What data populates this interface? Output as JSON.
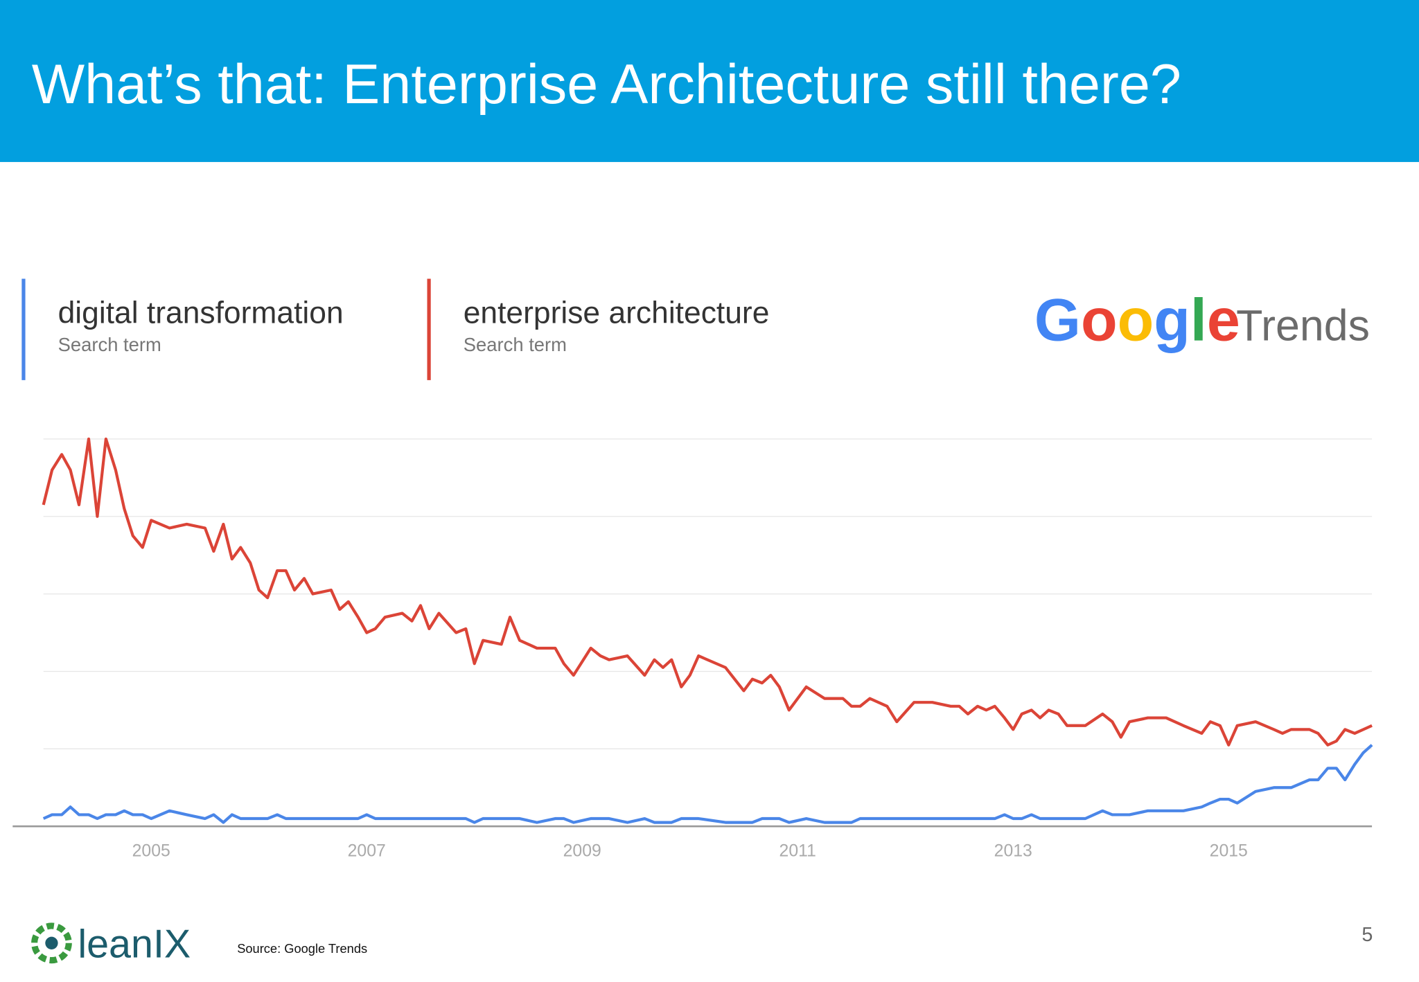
{
  "header": {
    "title": "What’s that: Enterprise Architecture still there?"
  },
  "chart_data": {
    "type": "line",
    "x": [
      2004.0,
      2004.08,
      2004.17,
      2004.25,
      2004.33,
      2004.42,
      2004.5,
      2004.58,
      2004.67,
      2004.75,
      2004.83,
      2004.92,
      2005.0,
      2005.17,
      2005.33,
      2005.5,
      2005.58,
      2005.67,
      2005.75,
      2005.83,
      2005.92,
      2006.0,
      2006.08,
      2006.17,
      2006.25,
      2006.33,
      2006.42,
      2006.5,
      2006.67,
      2006.75,
      2006.83,
      2006.92,
      2007.0,
      2007.08,
      2007.17,
      2007.33,
      2007.42,
      2007.5,
      2007.58,
      2007.67,
      2007.83,
      2007.92,
      2008.0,
      2008.08,
      2008.25,
      2008.33,
      2008.42,
      2008.58,
      2008.75,
      2008.83,
      2008.92,
      2009.08,
      2009.17,
      2009.25,
      2009.42,
      2009.58,
      2009.67,
      2009.75,
      2009.83,
      2009.92,
      2010.0,
      2010.08,
      2010.33,
      2010.5,
      2010.58,
      2010.67,
      2010.75,
      2010.83,
      2010.92,
      2011.08,
      2011.25,
      2011.42,
      2011.5,
      2011.58,
      2011.67,
      2011.83,
      2011.92,
      2012.08,
      2012.25,
      2012.42,
      2012.5,
      2012.58,
      2012.67,
      2012.75,
      2012.83,
      2012.92,
      2013.0,
      2013.08,
      2013.17,
      2013.25,
      2013.33,
      2013.42,
      2013.5,
      2013.67,
      2013.83,
      2013.92,
      2014.0,
      2014.08,
      2014.25,
      2014.42,
      2014.58,
      2014.75,
      2014.83,
      2014.92,
      2015.0,
      2015.08,
      2015.25,
      2015.42,
      2015.5,
      2015.58,
      2015.75,
      2015.83,
      2015.92,
      2016.0,
      2016.08,
      2016.17,
      2016.25,
      2016.33
    ],
    "series": [
      {
        "name": "digital transformation",
        "subtitle": "Search term",
        "color": "#4a86e8",
        "values": [
          2,
          3,
          3,
          5,
          3,
          3,
          2,
          3,
          3,
          4,
          3,
          3,
          2,
          4,
          3,
          2,
          3,
          1,
          3,
          2,
          2,
          2,
          2,
          3,
          2,
          2,
          2,
          2,
          2,
          2,
          2,
          2,
          3,
          2,
          2,
          2,
          2,
          2,
          2,
          2,
          2,
          2,
          1,
          2,
          2,
          2,
          2,
          1,
          2,
          2,
          1,
          2,
          2,
          2,
          1,
          2,
          1,
          1,
          1,
          2,
          2,
          2,
          1,
          1,
          1,
          2,
          2,
          2,
          1,
          2,
          1,
          1,
          1,
          2,
          2,
          2,
          2,
          2,
          2,
          2,
          2,
          2,
          2,
          2,
          2,
          3,
          2,
          2,
          3,
          2,
          2,
          2,
          2,
          2,
          4,
          3,
          3,
          3,
          4,
          4,
          4,
          5,
          6,
          7,
          7,
          6,
          9,
          10,
          10,
          10,
          12,
          12,
          15,
          15,
          12,
          16,
          19,
          21
        ]
      },
      {
        "name": "enterprise architecture",
        "subtitle": "Search term",
        "color": "#db4437",
        "values": [
          83,
          92,
          96,
          92,
          83,
          100,
          80,
          100,
          92,
          82,
          75,
          72,
          79,
          77,
          78,
          77,
          71,
          78,
          69,
          72,
          68,
          61,
          59,
          66,
          66,
          61,
          64,
          60,
          61,
          56,
          58,
          54,
          50,
          51,
          54,
          55,
          53,
          57,
          51,
          55,
          50,
          51,
          42,
          48,
          47,
          54,
          48,
          46,
          46,
          42,
          39,
          46,
          44,
          43,
          44,
          39,
          43,
          41,
          43,
          36,
          39,
          44,
          41,
          35,
          38,
          37,
          39,
          36,
          30,
          36,
          33,
          33,
          31,
          31,
          33,
          31,
          27,
          32,
          32,
          31,
          31,
          29,
          31,
          30,
          31,
          28,
          25,
          29,
          30,
          28,
          30,
          29,
          26,
          26,
          29,
          27,
          23,
          27,
          28,
          28,
          26,
          24,
          27,
          26,
          21,
          26,
          27,
          25,
          24,
          25,
          25,
          24,
          21,
          22,
          25,
          24,
          25,
          26
        ]
      }
    ],
    "xlim": [
      2004,
      2016.33
    ],
    "xticks": [
      2005,
      2007,
      2009,
      2011,
      2013,
      2015
    ],
    "ylim": [
      0,
      100
    ],
    "yticks": [
      0,
      20,
      40,
      60,
      80,
      100
    ],
    "grid": true
  },
  "logo": {
    "brand": "Google",
    "product": "Trends"
  },
  "footer": {
    "company": "leanIX",
    "source": "Source: Google Trends",
    "page": "5"
  }
}
